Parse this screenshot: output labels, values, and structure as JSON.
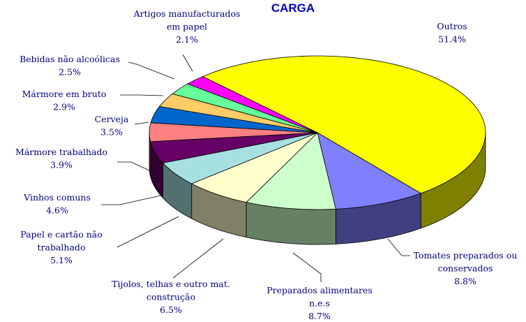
{
  "chart_data": {
    "type": "pie3d",
    "title": "CARGA",
    "categories": [
      "Outros",
      "Tomates preparados ou conservados",
      "Preparados alimentares n.e.s",
      "Tijolos, telhas e outro mat. construção",
      "Papel e cartão não trabalhado",
      "Vinhos comuns",
      "Mármore trabalhado",
      "Cerveja",
      "Mármore em bruto",
      "Bebidas não alcoólicas",
      "Artigos manufacturados em papel"
    ],
    "values": [
      51.4,
      8.8,
      8.7,
      6.5,
      5.1,
      4.6,
      3.9,
      3.5,
      2.9,
      2.5,
      2.1
    ],
    "value_labels": [
      "51.4%",
      "8.8%",
      "8.7%",
      "6.5%",
      "5.1%",
      "4.6%",
      "3.9%",
      "3.5%",
      "2.9%",
      "2.5%",
      "2.1%"
    ],
    "colors": [
      "#ffff00",
      "#8080ff",
      "#ccffcc",
      "#ffffcc",
      "#a6e0e0",
      "#660066",
      "#ff8080",
      "#0066cc",
      "#ffcc66",
      "#66ff99",
      "#ff00ff"
    ]
  }
}
